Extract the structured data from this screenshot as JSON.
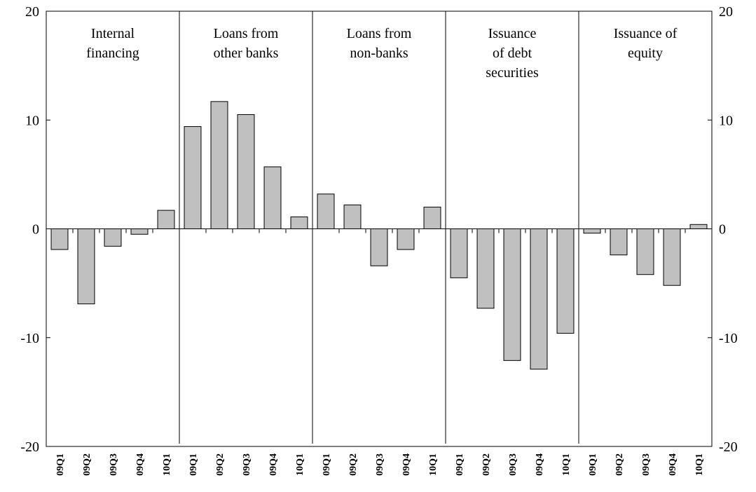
{
  "chart_data": {
    "type": "bar",
    "ylim": [
      -20,
      20
    ],
    "yticks": [
      "20",
      "10",
      "0",
      "-10",
      "-20"
    ],
    "ytick_values": [
      20,
      10,
      0,
      -10,
      -20
    ],
    "bar_color": "#c0c0c0",
    "grid": false,
    "panels": [
      {
        "label": [
          "Internal",
          "financing"
        ],
        "categories": [
          "09Q1",
          "09Q2",
          "09Q3",
          "09Q4",
          "10Q1"
        ],
        "values": [
          -1.9,
          -6.9,
          -1.6,
          -0.5,
          1.7
        ]
      },
      {
        "label": [
          "Loans from",
          "other banks"
        ],
        "categories": [
          "09Q1",
          "09Q2",
          "09Q3",
          "09Q4",
          "10Q1"
        ],
        "values": [
          9.4,
          11.7,
          10.5,
          5.7,
          1.1
        ]
      },
      {
        "label": [
          "Loans from",
          "non-banks"
        ],
        "categories": [
          "09Q1",
          "09Q2",
          "09Q3",
          "09Q4",
          "10Q1"
        ],
        "values": [
          3.2,
          2.2,
          -3.4,
          -1.9,
          2.0
        ]
      },
      {
        "label": [
          "Issuance",
          "of debt",
          "securities"
        ],
        "categories": [
          "09Q1",
          "09Q2",
          "09Q3",
          "09Q4",
          "10Q1"
        ],
        "values": [
          -4.5,
          -7.3,
          -12.1,
          -12.9,
          -9.6
        ]
      },
      {
        "label": [
          "Issuance of",
          "equity"
        ],
        "categories": [
          "09Q1",
          "09Q2",
          "09Q3",
          "09Q4",
          "10Q1"
        ],
        "values": [
          -0.4,
          -2.4,
          -4.2,
          -5.2,
          0.4
        ]
      }
    ]
  }
}
